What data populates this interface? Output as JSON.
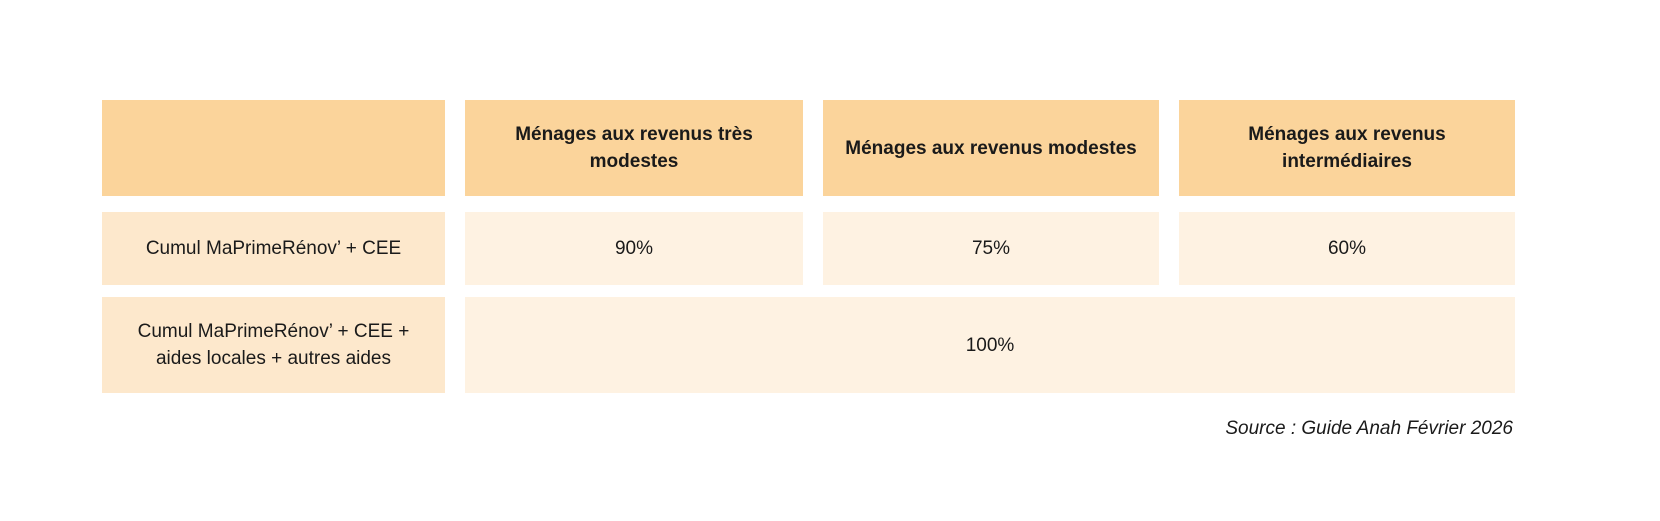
{
  "table": {
    "headers": [
      "",
      "Ménages aux revenus très modestes",
      "Ménages aux revenus modestes",
      "Ménages aux revenus intermédiaires"
    ],
    "rows": [
      {
        "label": "Cumul MaPrimeRénov’ + CEE",
        "values": [
          "90%",
          "75%",
          "60%"
        ]
      },
      {
        "label": "Cumul MaPrimeRénov’ + CEE + aides locales + autres aides",
        "merged_value": "100%"
      }
    ]
  },
  "source": "Source : Guide Anah Février 2026",
  "colors": {
    "header_bg": "#fbd49b",
    "row_label_bg": "#fde8cc",
    "value_cell_bg": "#fef2e2",
    "text": "#1a1a1a"
  }
}
